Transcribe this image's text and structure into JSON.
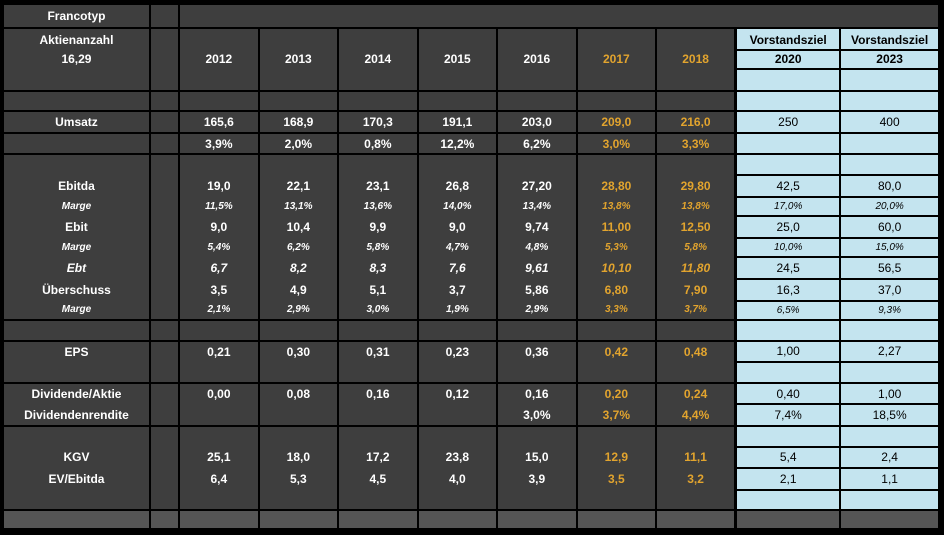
{
  "header": {
    "company": "Francotyp",
    "shares_label": "Aktienanzahl",
    "shares_value": "16,29"
  },
  "columns": {
    "years": [
      "2012",
      "2013",
      "2014",
      "2015",
      "2016",
      "2017",
      "2018"
    ],
    "forecast_years": [
      "2017",
      "2018"
    ],
    "targets": [
      {
        "title": "Vorstandsziel",
        "year": "2020"
      },
      {
        "title": "Vorstandsziel",
        "year": "2023"
      }
    ]
  },
  "rows": [
    {
      "id": "umsatz",
      "label": "Umsatz",
      "kind": "value",
      "values": [
        "165,6",
        "168,9",
        "170,3",
        "191,1",
        "203,0",
        "209,0",
        "216,0",
        "250",
        "400"
      ]
    },
    {
      "id": "umsatz-wachstum",
      "label": "",
      "kind": "value",
      "values": [
        "3,9%",
        "2,0%",
        "0,8%",
        "12,2%",
        "6,2%",
        "3,0%",
        "3,3%",
        "",
        ""
      ]
    },
    {
      "id": "ebitda",
      "label": "Ebitda",
      "kind": "value",
      "values": [
        "19,0",
        "22,1",
        "23,1",
        "26,8",
        "27,20",
        "28,80",
        "29,80",
        "42,5",
        "80,0"
      ]
    },
    {
      "id": "ebitda-marge",
      "label": "Marge",
      "kind": "marge",
      "values": [
        "11,5%",
        "13,1%",
        "13,6%",
        "14,0%",
        "13,4%",
        "13,8%",
        "13,8%",
        "17,0%",
        "20,0%"
      ]
    },
    {
      "id": "ebit",
      "label": "Ebit",
      "kind": "value",
      "values": [
        "9,0",
        "10,4",
        "9,9",
        "9,0",
        "9,74",
        "11,00",
        "12,50",
        "25,0",
        "60,0"
      ]
    },
    {
      "id": "ebit-marge",
      "label": "Marge",
      "kind": "marge",
      "values": [
        "5,4%",
        "6,2%",
        "5,8%",
        "4,7%",
        "4,8%",
        "5,3%",
        "5,8%",
        "10,0%",
        "15,0%"
      ]
    },
    {
      "id": "ebt",
      "label": "Ebt",
      "kind": "value",
      "italic": true,
      "values": [
        "6,7",
        "8,2",
        "8,3",
        "7,6",
        "9,61",
        "10,10",
        "11,80",
        "24,5",
        "56,5"
      ]
    },
    {
      "id": "ueberschuss",
      "label": "Überschuss",
      "kind": "value",
      "values": [
        "3,5",
        "4,9",
        "5,1",
        "3,7",
        "5,86",
        "6,80",
        "7,90",
        "16,3",
        "37,0"
      ]
    },
    {
      "id": "ueberschuss-marge",
      "label": "Marge",
      "kind": "marge",
      "values": [
        "2,1%",
        "2,9%",
        "3,0%",
        "1,9%",
        "2,9%",
        "3,3%",
        "3,7%",
        "6,5%",
        "9,3%"
      ]
    },
    {
      "id": "eps",
      "label": "EPS",
      "kind": "value",
      "values": [
        "0,21",
        "0,30",
        "0,31",
        "0,23",
        "0,36",
        "0,42",
        "0,48",
        "1,00",
        "2,27"
      ]
    },
    {
      "id": "dividende-aktie",
      "label": "Dividende/Aktie",
      "kind": "value",
      "values": [
        "0,00",
        "0,08",
        "0,16",
        "0,12",
        "0,16",
        "0,20",
        "0,24",
        "0,40",
        "1,00"
      ]
    },
    {
      "id": "dividendenrendite",
      "label": "Dividendenrendite",
      "kind": "value",
      "values": [
        "",
        "",
        "",
        "",
        "3,0%",
        "3,7%",
        "4,4%",
        "7,4%",
        "18,5%"
      ]
    },
    {
      "id": "kgv",
      "label": "KGV",
      "kind": "value",
      "values": [
        "25,1",
        "18,0",
        "17,2",
        "23,8",
        "15,0",
        "12,9",
        "11,1",
        "5,4",
        "2,4"
      ]
    },
    {
      "id": "ev-ebitda",
      "label": "EV/Ebitda",
      "kind": "value",
      "values": [
        "6,4",
        "5,3",
        "4,5",
        "4,0",
        "3,9",
        "3,5",
        "3,2",
        "2,1",
        "1,1"
      ]
    }
  ],
  "colors": {
    "cell_dark": "#3e3e3e",
    "separator_light": "#555555",
    "forecast_orange": "#e2a42e",
    "target_blue": "#c4e4ef",
    "grid_border": "#000000",
    "text_white": "#ffffff"
  }
}
